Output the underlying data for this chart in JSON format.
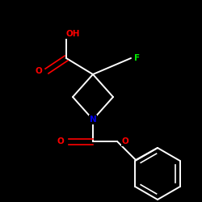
{
  "background_color": "#000000",
  "atom_colors": {
    "N": "#0000ee",
    "O": "#ff0000",
    "F": "#00ee00",
    "C": "#ffffff",
    "H": "#ffffff"
  },
  "bond_color": "#ffffff",
  "figsize": [
    2.5,
    2.5
  ],
  "dpi": 100
}
